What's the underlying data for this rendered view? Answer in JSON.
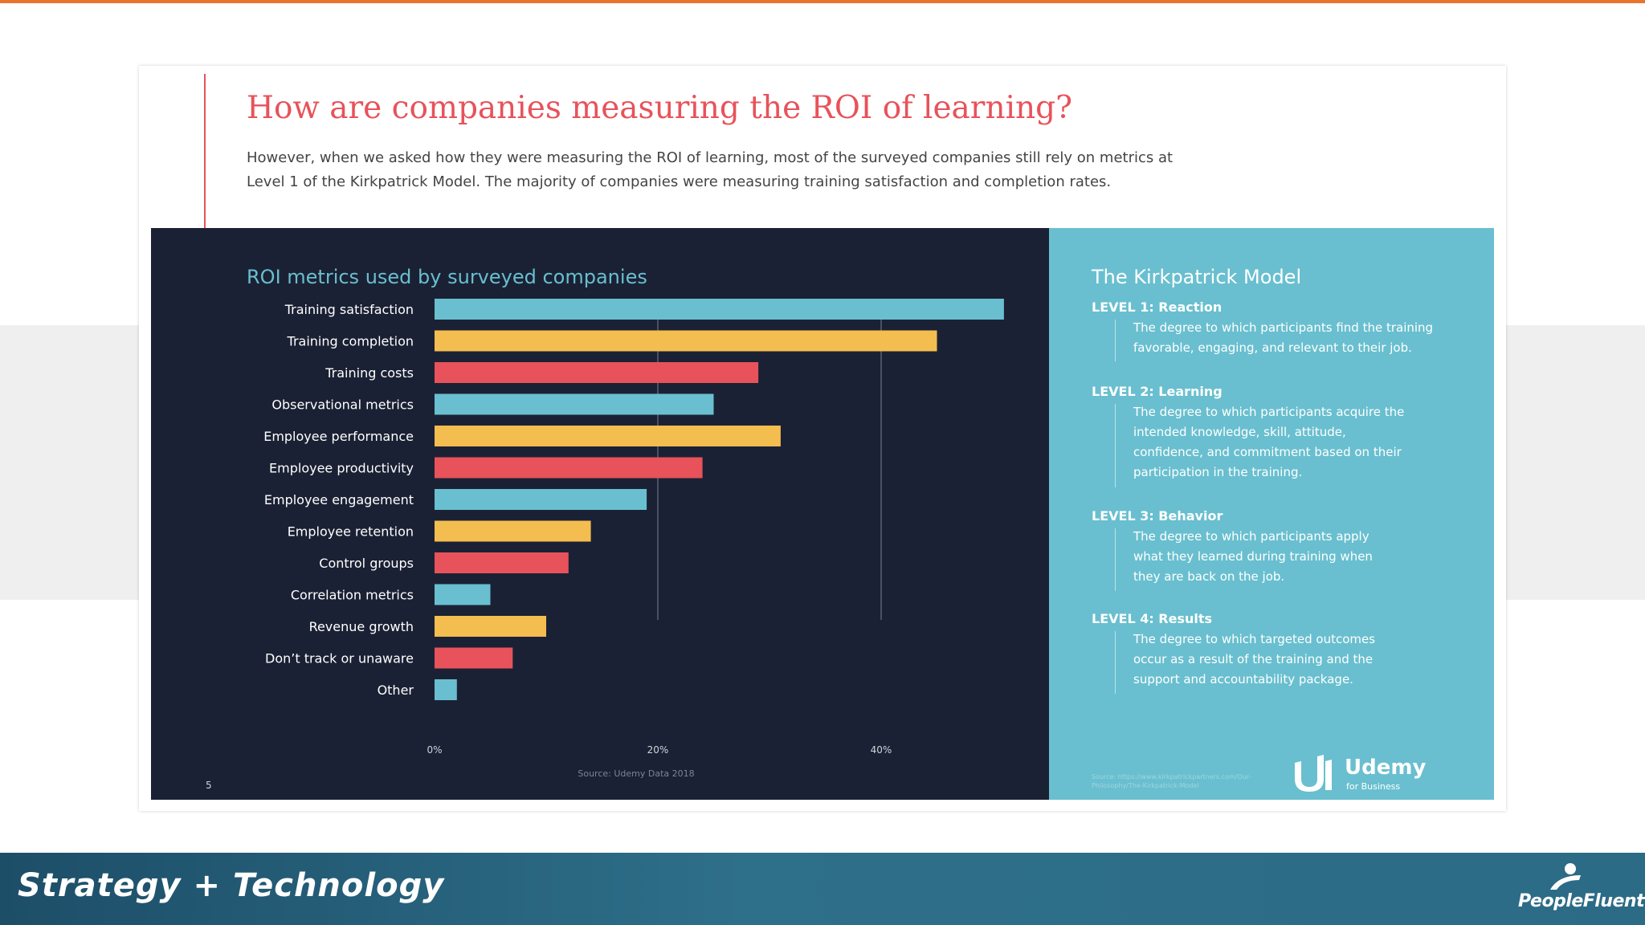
{
  "slide": {
    "title": "How are companies measuring the ROI of learning?",
    "intro": "However, when we asked how they were measuring the ROI of learning, most of the surveyed companies still rely on metrics at Level 1 of the Kirkpatrick Model. The majority of companies were measuring training satisfaction and completion rates.",
    "page_number": "5"
  },
  "chart_data": {
    "type": "bar",
    "orientation": "horizontal",
    "title": "ROI metrics used by surveyed companies",
    "source": "Source: Udemy Data 2018",
    "categories": [
      "Training satisfaction",
      "Training completion",
      "Training costs",
      "Observational metrics",
      "Employee performance",
      "Employee productivity",
      "Employee engagement",
      "Employee retention",
      "Control groups",
      "Correlation metrics",
      "Revenue growth",
      "Don’t track or unaware",
      "Other"
    ],
    "values": [
      51,
      45,
      29,
      25,
      31,
      24,
      19,
      14,
      12,
      5,
      10,
      7,
      2
    ],
    "bar_colors": [
      "#69bfcf",
      "#f4bd4f",
      "#e8525a",
      "#69bfcf",
      "#f4bd4f",
      "#e8525a",
      "#69bfcf",
      "#f4bd4f",
      "#e8525a",
      "#69bfcf",
      "#f4bd4f",
      "#e8525a",
      "#69bfcf"
    ],
    "xlim": [
      0,
      60
    ],
    "x_ticks": [
      0,
      20,
      40
    ],
    "x_tick_labels": [
      "0%",
      "20%",
      "40%"
    ],
    "grid": "vertical",
    "legend": "none",
    "xlabel": "",
    "ylabel": ""
  },
  "kirkpatrick": {
    "title": "The Kirkpatrick Model",
    "levels": [
      {
        "label": "LEVEL 1: Reaction",
        "desc": "The degree to which participants find the training favorable, engaging, and relevant to their job."
      },
      {
        "label": "LEVEL 2: Learning",
        "desc": "The degree to which participants acquire the intended knowledge, skill, attitude, confidence, and commitment based on their participation in the training."
      },
      {
        "label": "LEVEL 3: Behavior",
        "desc": "The degree to which participants apply what they learned during training when they are back on the job."
      },
      {
        "label": "LEVEL 4: Results",
        "desc": "The degree to which targeted outcomes occur as a result of the training and the support and accountability package."
      }
    ],
    "source": "Source: https://www.kirkpatrickpartners.com/Our-Philosophy/The-Kirkpatrick-Model"
  },
  "udemy": {
    "name": "Udemy",
    "sub": "for Business"
  },
  "footer": {
    "title": "Strategy + Technology",
    "logo": "PeopleFluent"
  },
  "colors": {
    "accent_red": "#e8525a",
    "teal": "#69bfcf",
    "yellow": "#f4bd4f",
    "navy": "#1b2134",
    "orange_rule": "#e8742e"
  }
}
